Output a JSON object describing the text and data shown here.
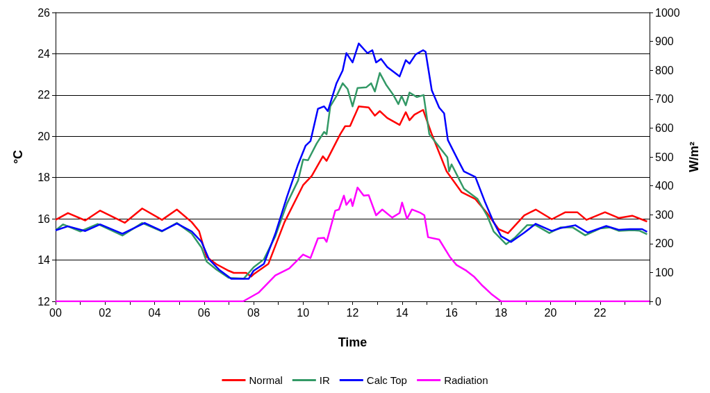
{
  "chart_data": {
    "type": "line",
    "xlabel": "Time",
    "ylabel": "°C",
    "y2label": "W/m²",
    "xlim": [
      0,
      24
    ],
    "xticks": [
      {
        "value": 0,
        "label": "00"
      },
      {
        "value": 1,
        "label": null
      },
      {
        "value": 2,
        "label": "02"
      },
      {
        "value": 3,
        "label": null
      },
      {
        "value": 4,
        "label": "04"
      },
      {
        "value": 5,
        "label": null
      },
      {
        "value": 6,
        "label": "06"
      },
      {
        "value": 7,
        "label": null
      },
      {
        "value": 8,
        "label": "08"
      },
      {
        "value": 9,
        "label": null
      },
      {
        "value": 10,
        "label": "10"
      },
      {
        "value": 11,
        "label": null
      },
      {
        "value": 12,
        "label": "12"
      },
      {
        "value": 13,
        "label": null
      },
      {
        "value": 14,
        "label": "14"
      },
      {
        "value": 15,
        "label": null
      },
      {
        "value": 16,
        "label": "16"
      },
      {
        "value": 17,
        "label": null
      },
      {
        "value": 18,
        "label": "18"
      },
      {
        "value": 19,
        "label": null
      },
      {
        "value": 20,
        "label": "20"
      },
      {
        "value": 21,
        "label": null
      },
      {
        "value": 22,
        "label": "22"
      },
      {
        "value": 23,
        "label": null
      },
      {
        "value": 24,
        "label": null
      }
    ],
    "ylim": [
      12,
      26
    ],
    "yticks": [
      12,
      14,
      16,
      18,
      20,
      22,
      24,
      26
    ],
    "y2lim": [
      0,
      1000
    ],
    "y2ticks": [
      0,
      100,
      200,
      300,
      400,
      500,
      600,
      700,
      800,
      900,
      1000
    ],
    "grid": "y",
    "legend": "bottom",
    "marker": "none",
    "line_style": "solid",
    "series": [
      {
        "name": "Normal",
        "color": "#ff0000",
        "x": [
          0,
          0.5,
          1.2,
          1.8,
          2.8,
          3.5,
          4.3,
          4.9,
          5.5,
          5.8,
          6.1,
          6.5,
          7.0,
          7.2,
          7.7,
          7.9,
          8.0,
          8.6,
          9.25,
          10.0,
          10.35,
          10.8,
          10.95,
          11.5,
          11.7,
          11.9,
          12.25,
          12.65,
          12.9,
          13.1,
          13.4,
          13.9,
          14.15,
          14.3,
          14.5,
          14.85,
          15.2,
          15.8,
          16.4,
          16.96,
          17.43,
          17.9,
          18.28,
          18.94,
          19.4,
          20.05,
          20.6,
          21.08,
          21.45,
          22.2,
          22.75,
          23.3,
          23.9
        ],
        "values": [
          15.95,
          16.28,
          15.92,
          16.4,
          15.81,
          16.5,
          15.95,
          16.45,
          15.84,
          15.4,
          14.15,
          13.8,
          13.48,
          13.38,
          13.38,
          13.2,
          13.31,
          13.82,
          15.84,
          17.63,
          18.08,
          19.03,
          18.81,
          20.1,
          20.49,
          20.5,
          21.45,
          21.4,
          21.0,
          21.22,
          20.89,
          20.55,
          21.17,
          20.78,
          21.05,
          21.28,
          20.1,
          18.3,
          17.3,
          16.96,
          16.28,
          15.5,
          15.3,
          16.17,
          16.45,
          15.98,
          16.32,
          16.32,
          15.95,
          16.32,
          16.04,
          16.15,
          15.87
        ]
      },
      {
        "name": "IR",
        "color": "#339966",
        "x": [
          0,
          0.3,
          1.0,
          1.7,
          2.7,
          3.5,
          4.3,
          4.9,
          5.5,
          5.9,
          6.1,
          6.5,
          7.0,
          7.6,
          8.0,
          8.42,
          8.88,
          9.35,
          9.8,
          10.0,
          10.2,
          10.55,
          10.85,
          10.95,
          11.1,
          11.35,
          11.6,
          11.8,
          12.0,
          12.2,
          12.55,
          12.75,
          12.9,
          13.1,
          13.35,
          13.65,
          13.85,
          13.98,
          14.15,
          14.3,
          14.6,
          14.87,
          15.1,
          15.83,
          15.9,
          16.0,
          16.5,
          17.05,
          17.43,
          17.7,
          18.2,
          18.57,
          19.05,
          19.4,
          19.95,
          20.4,
          20.9,
          21.4,
          22.0,
          22.4,
          22.75,
          23.3,
          23.6,
          23.9
        ],
        "values": [
          15.44,
          15.73,
          15.39,
          15.75,
          15.19,
          15.8,
          15.39,
          15.8,
          15.28,
          14.6,
          13.93,
          13.54,
          13.14,
          13.1,
          13.65,
          14.04,
          15.16,
          16.74,
          17.86,
          18.87,
          18.84,
          19.65,
          20.21,
          20.1,
          21.45,
          21.95,
          22.57,
          22.29,
          21.45,
          22.34,
          22.37,
          22.57,
          22.17,
          23.07,
          22.51,
          22.0,
          21.56,
          21.95,
          21.5,
          22.12,
          21.9,
          22.0,
          20.1,
          18.98,
          18.3,
          18.64,
          17.46,
          16.96,
          16.17,
          15.39,
          14.77,
          15.1,
          15.69,
          15.69,
          15.31,
          15.58,
          15.58,
          15.2,
          15.53,
          15.58,
          15.42,
          15.45,
          15.42,
          15.25
        ]
      },
      {
        "name": "Calc Top",
        "color": "#0000ff",
        "x": [
          0,
          0.5,
          1.2,
          1.8,
          2.7,
          3.6,
          4.3,
          4.9,
          5.5,
          5.9,
          6.2,
          6.6,
          7.1,
          7.8,
          8.0,
          8.42,
          8.88,
          9.35,
          9.8,
          10.1,
          10.3,
          10.6,
          10.85,
          11.0,
          11.35,
          11.6,
          11.75,
          12.0,
          12.25,
          12.6,
          12.8,
          12.95,
          13.15,
          13.4,
          13.9,
          14.15,
          14.3,
          14.55,
          14.85,
          14.95,
          15.2,
          15.5,
          15.7,
          15.85,
          16.25,
          16.5,
          16.96,
          17.34,
          17.7,
          18.0,
          18.4,
          18.94,
          19.4,
          20.05,
          20.4,
          21.0,
          21.5,
          22.25,
          22.75,
          23.2,
          23.7,
          23.9
        ],
        "values": [
          15.44,
          15.64,
          15.41,
          15.73,
          15.28,
          15.8,
          15.41,
          15.77,
          15.39,
          14.88,
          14.04,
          13.54,
          13.09,
          13.09,
          13.48,
          13.82,
          15.28,
          17.07,
          18.64,
          19.54,
          19.77,
          21.33,
          21.45,
          21.22,
          22.57,
          23.19,
          24.03,
          23.58,
          24.5,
          24.03,
          24.17,
          23.58,
          23.75,
          23.36,
          22.9,
          23.69,
          23.52,
          23.97,
          24.17,
          24.1,
          22.23,
          21.39,
          21.11,
          19.82,
          18.87,
          18.3,
          18.03,
          16.85,
          15.84,
          15.16,
          14.88,
          15.33,
          15.76,
          15.41,
          15.55,
          15.69,
          15.33,
          15.65,
          15.47,
          15.5,
          15.5,
          15.37
        ]
      },
      {
        "name": "Radiation",
        "color": "#ff00ff",
        "axis": "y2",
        "x": [
          0,
          7.58,
          8.2,
          8.88,
          9.44,
          10.0,
          10.3,
          10.6,
          10.85,
          10.95,
          11.3,
          11.45,
          11.65,
          11.75,
          11.93,
          12.0,
          12.2,
          12.45,
          12.65,
          12.95,
          13.2,
          13.6,
          13.9,
          14.0,
          14.2,
          14.4,
          14.75,
          14.9,
          15.05,
          15.5,
          15.93,
          16.2,
          16.6,
          16.9,
          17.25,
          17.6,
          18.0,
          24
        ],
        "values": [
          0,
          0,
          30,
          90,
          114,
          162,
          150,
          218,
          220,
          206,
          314,
          318,
          366,
          334,
          354,
          330,
          394,
          366,
          368,
          298,
          318,
          290,
          306,
          342,
          286,
          318,
          306,
          298,
          222,
          214,
          154,
          126,
          106,
          86,
          54,
          26,
          0,
          0
        ]
      }
    ]
  }
}
